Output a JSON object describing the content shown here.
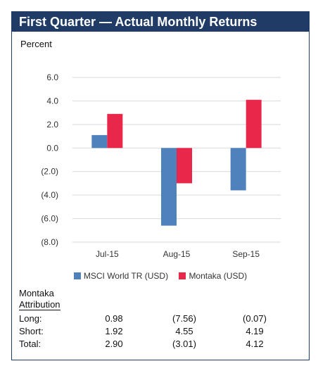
{
  "header": {
    "title": "First Quarter — Actual Monthly Returns"
  },
  "chart_data": {
    "type": "bar",
    "ylabel": "Percent",
    "categories": [
      "Jul-15",
      "Aug-15",
      "Sep-15"
    ],
    "series": [
      {
        "name": "MSCI World TR (USD)",
        "color": "#4f81bd",
        "values": [
          1.1,
          -6.6,
          -3.6
        ]
      },
      {
        "name": "Montaka (USD)",
        "color": "#e8274b",
        "values": [
          2.9,
          -3.0,
          4.1
        ]
      }
    ],
    "ylim": [
      -8,
      6
    ],
    "yticks": [
      "6.0",
      "4.0",
      "2.0",
      "0.0",
      "(2.0)",
      "(4.0)",
      "(6.0)",
      "(8.0)"
    ],
    "grid": true,
    "legend": "bottom"
  },
  "attribution": {
    "title": "Montaka",
    "subtitle": "Attribution",
    "rows": [
      {
        "label": "Long:",
        "values": [
          "0.98",
          "(7.56)",
          "(0.07)"
        ]
      },
      {
        "label": "Short:",
        "values": [
          "1.92",
          "4.55",
          "4.19"
        ]
      },
      {
        "label": "Total:",
        "values": [
          "2.90",
          "(3.01)",
          "4.12"
        ]
      }
    ]
  }
}
